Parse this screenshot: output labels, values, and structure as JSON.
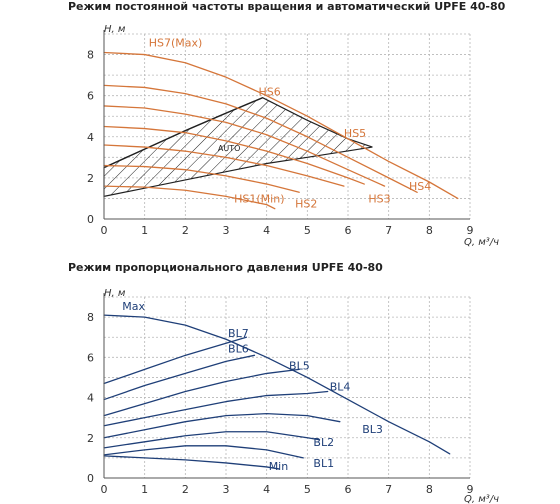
{
  "chart_data": [
    {
      "type": "line",
      "title": "Режим постоянной частоты вращения и автоматический  UPFE 40-80",
      "xlabel": "Q, м³/ч",
      "ylabel": "H, м",
      "xlim": [
        0,
        9
      ],
      "ylim": [
        0,
        9
      ],
      "x_ticks": [
        "0",
        "1",
        "2",
        "3",
        "4",
        "5",
        "6",
        "7",
        "8",
        "9"
      ],
      "y_ticks": [
        "0",
        "2",
        "4",
        "6",
        "8"
      ],
      "grid": true,
      "color": "#d5763a",
      "series": [
        {
          "name": "HS7(Max)",
          "x": [
            0,
            1,
            2,
            3,
            4,
            5,
            6,
            7,
            8,
            8.7
          ],
          "y": [
            8.1,
            8.0,
            7.6,
            6.9,
            6.0,
            5.0,
            3.9,
            2.8,
            1.8,
            1.0
          ]
        },
        {
          "name": "HS6",
          "x": [
            0,
            1,
            2,
            3,
            4,
            5,
            6,
            7,
            7.7
          ],
          "y": [
            6.5,
            6.4,
            6.1,
            5.6,
            4.9,
            4.0,
            3.0,
            2.0,
            1.3
          ]
        },
        {
          "name": "HS5",
          "x": [
            0,
            1,
            2,
            3,
            4,
            5,
            6,
            6.9
          ],
          "y": [
            5.5,
            5.4,
            5.1,
            4.7,
            4.1,
            3.3,
            2.4,
            1.6
          ]
        },
        {
          "name": "HS4",
          "x": [
            0,
            1,
            2,
            3,
            4,
            5,
            6,
            6.4
          ],
          "y": [
            4.5,
            4.4,
            4.2,
            3.8,
            3.3,
            2.7,
            2.0,
            1.7
          ]
        },
        {
          "name": "HS3",
          "x": [
            0,
            1,
            2,
            3,
            4,
            5,
            5.9
          ],
          "y": [
            3.6,
            3.5,
            3.3,
            3.0,
            2.6,
            2.1,
            1.6
          ]
        },
        {
          "name": "HS2",
          "x": [
            0,
            1,
            2,
            3,
            4,
            4.8
          ],
          "y": [
            2.6,
            2.55,
            2.4,
            2.1,
            1.7,
            1.3
          ]
        },
        {
          "name": "HS1(Min)",
          "x": [
            0,
            1,
            2,
            3,
            4,
            4.2
          ],
          "y": [
            1.6,
            1.55,
            1.4,
            1.1,
            0.7,
            0.5
          ]
        }
      ],
      "auto_region": {
        "label": "AUTO",
        "points": [
          [
            0,
            2.5
          ],
          [
            1,
            3.4
          ],
          [
            2,
            4.3
          ],
          [
            3,
            5.15
          ],
          [
            3.9,
            5.9
          ],
          [
            5,
            4.8
          ],
          [
            6,
            3.9
          ],
          [
            6.6,
            3.5
          ],
          [
            5,
            3.0
          ],
          [
            4,
            2.7
          ],
          [
            3,
            2.3
          ],
          [
            2,
            1.9
          ],
          [
            1,
            1.5
          ],
          [
            0,
            1.1
          ]
        ]
      },
      "labels": [
        {
          "text": "HS7(Max)",
          "x": 1.1,
          "y": 8.4
        },
        {
          "text": "HS6",
          "x": 3.8,
          "y": 6.0
        },
        {
          "text": "HS5",
          "x": 5.9,
          "y": 4.0
        },
        {
          "text": "HS4",
          "x": 7.5,
          "y": 1.4
        },
        {
          "text": "HS3",
          "x": 6.5,
          "y": 0.8
        },
        {
          "text": "HS2",
          "x": 4.7,
          "y": 0.55
        },
        {
          "text": "HS1(Min)",
          "x": 3.2,
          "y": 0.8
        }
      ]
    },
    {
      "type": "line",
      "title": "Режим пропорционального давления UPFE 40-80",
      "xlabel": "Q, м³/ч",
      "ylabel": "H, м",
      "xlim": [
        0,
        9
      ],
      "ylim": [
        0,
        9
      ],
      "x_ticks": [
        "0",
        "1",
        "2",
        "3",
        "4",
        "5",
        "6",
        "7",
        "8",
        "9"
      ],
      "y_ticks": [
        "0",
        "2",
        "4",
        "6",
        "8"
      ],
      "grid": true,
      "color": "#1f3f78",
      "series": [
        {
          "name": "Max",
          "x": [
            0,
            1,
            2,
            3,
            4,
            5,
            6,
            7,
            8,
            8.5
          ],
          "y": [
            8.1,
            8.0,
            7.6,
            6.9,
            6.0,
            5.0,
            3.9,
            2.8,
            1.8,
            1.2
          ]
        },
        {
          "name": "BL7",
          "x": [
            0,
            1,
            2,
            3,
            3.5
          ],
          "y": [
            4.7,
            5.4,
            6.1,
            6.7,
            7.0
          ]
        },
        {
          "name": "BL6",
          "x": [
            0,
            1,
            2,
            3,
            3.7
          ],
          "y": [
            3.9,
            4.6,
            5.2,
            5.8,
            6.1
          ]
        },
        {
          "name": "BL5",
          "x": [
            0,
            1,
            2,
            3,
            4,
            4.8
          ],
          "y": [
            3.1,
            3.7,
            4.3,
            4.8,
            5.2,
            5.4
          ]
        },
        {
          "name": "BL4",
          "x": [
            0,
            1,
            2,
            3,
            4,
            5,
            5.5
          ],
          "y": [
            2.6,
            3.0,
            3.4,
            3.8,
            4.1,
            4.2,
            4.3
          ]
        },
        {
          "name": "BL3",
          "x": [
            0,
            1,
            2,
            3,
            4,
            5,
            5.8
          ],
          "y": [
            2.0,
            2.4,
            2.8,
            3.1,
            3.2,
            3.1,
            2.8
          ]
        },
        {
          "name": "BL2",
          "x": [
            0,
            1,
            2,
            3,
            4,
            5,
            5.3
          ],
          "y": [
            1.5,
            1.8,
            2.1,
            2.3,
            2.3,
            2.0,
            1.9
          ]
        },
        {
          "name": "BL1",
          "x": [
            0,
            1,
            2,
            3,
            4,
            4.9
          ],
          "y": [
            1.15,
            1.4,
            1.6,
            1.6,
            1.4,
            1.0
          ]
        },
        {
          "name": "Min",
          "x": [
            0,
            1,
            2,
            3,
            4,
            4.3
          ],
          "y": [
            1.1,
            1.0,
            0.9,
            0.75,
            0.55,
            0.45
          ]
        }
      ],
      "labels": [
        {
          "text": "Max",
          "x": 0.45,
          "y": 8.35
        },
        {
          "text": "BL7",
          "x": 3.05,
          "y": 7.0
        },
        {
          "text": "BL6",
          "x": 3.05,
          "y": 6.25
        },
        {
          "text": "BL5",
          "x": 4.55,
          "y": 5.4
        },
        {
          "text": "BL4",
          "x": 5.55,
          "y": 4.35
        },
        {
          "text": "BL3",
          "x": 6.35,
          "y": 2.25
        },
        {
          "text": "BL2",
          "x": 5.15,
          "y": 1.6
        },
        {
          "text": "BL1",
          "x": 5.15,
          "y": 0.55
        },
        {
          "text": "Min",
          "x": 4.05,
          "y": 0.4
        }
      ]
    }
  ]
}
